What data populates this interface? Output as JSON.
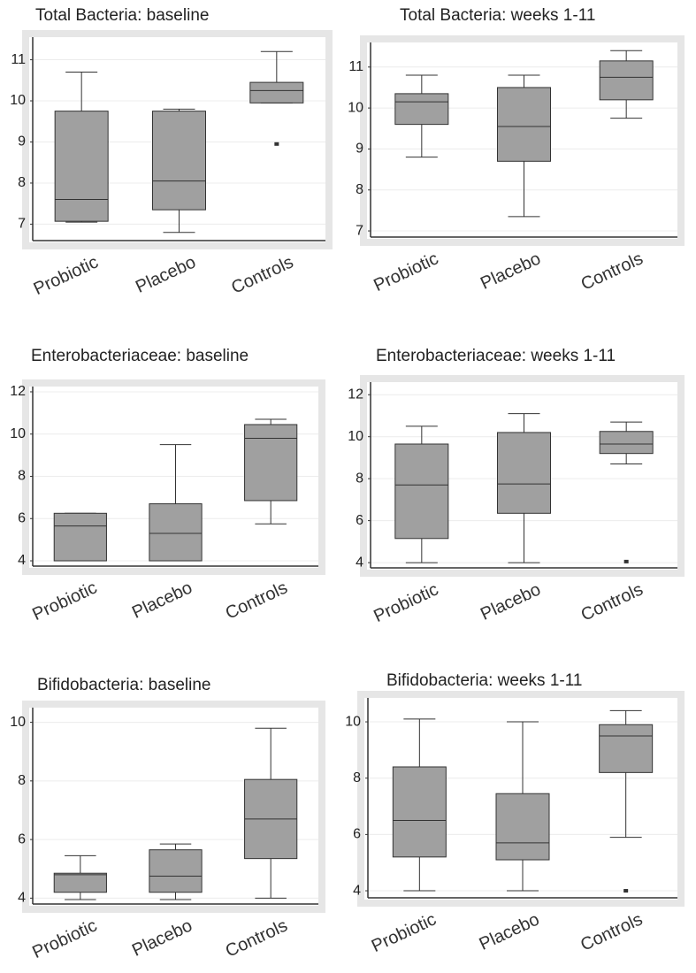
{
  "chart_data": [
    {
      "type": "box",
      "title": "Total Bacteria: baseline",
      "categories": [
        "Probiotic",
        "Placebo",
        "Controls"
      ],
      "color": "#a0a0a0",
      "grid": true,
      "ylim": [
        6.6,
        11.55
      ],
      "yticks": [
        7,
        8,
        9,
        10,
        11
      ],
      "boxes": [
        {
          "min": 7.05,
          "q1": 7.07,
          "median": 7.6,
          "q3": 9.75,
          "max": 10.7
        },
        {
          "min": 6.8,
          "q1": 7.35,
          "median": 8.05,
          "q3": 9.75,
          "max": 9.8
        },
        {
          "min": 9.95,
          "q1": 9.95,
          "median": 10.25,
          "q3": 10.45,
          "max": 11.2,
          "outliers": [
            8.95
          ]
        }
      ]
    },
    {
      "type": "box",
      "title": "Total Bacteria: weeks 1-11",
      "categories": [
        "Probiotic",
        "Placebo",
        "Controls"
      ],
      "color": "#a0a0a0",
      "grid": true,
      "ylim": [
        6.85,
        11.6
      ],
      "yticks": [
        7,
        8,
        9,
        10,
        11
      ],
      "boxes": [
        {
          "min": 8.8,
          "q1": 9.6,
          "median": 10.15,
          "q3": 10.35,
          "max": 10.8
        },
        {
          "min": 7.35,
          "q1": 8.7,
          "median": 9.55,
          "q3": 10.5,
          "max": 10.8
        },
        {
          "min": 9.75,
          "q1": 10.2,
          "median": 10.75,
          "q3": 11.15,
          "max": 11.4
        }
      ]
    },
    {
      "type": "box",
      "title": "Enterobacteriaceae: baseline",
      "categories": [
        "Probiotic",
        "Placebo",
        "Controls"
      ],
      "color": "#a0a0a0",
      "grid": true,
      "ylim": [
        3.75,
        12.25
      ],
      "yticks": [
        4,
        6,
        8,
        10,
        12
      ],
      "boxes": [
        {
          "min": 4,
          "q1": 4,
          "median": 5.65,
          "q3": 6.25,
          "max": 6.25
        },
        {
          "min": 4,
          "q1": 4,
          "median": 5.3,
          "q3": 6.7,
          "max": 9.5
        },
        {
          "min": 5.75,
          "q1": 6.85,
          "median": 9.8,
          "q3": 10.45,
          "max": 10.7
        }
      ]
    },
    {
      "type": "box",
      "title": "Enterobacteriaceae: weeks 1-11",
      "categories": [
        "Probiotic",
        "Placebo",
        "Controls"
      ],
      "color": "#a0a0a0",
      "grid": true,
      "ylim": [
        3.75,
        12.6
      ],
      "yticks": [
        4,
        6,
        8,
        10,
        12
      ],
      "boxes": [
        {
          "min": 4,
          "q1": 5.15,
          "median": 7.7,
          "q3": 9.65,
          "max": 10.5
        },
        {
          "min": 4,
          "q1": 6.35,
          "median": 7.75,
          "q3": 10.2,
          "max": 11.1
        },
        {
          "min": 8.7,
          "q1": 9.2,
          "median": 9.65,
          "q3": 10.25,
          "max": 10.7,
          "outliers": [
            4.05
          ]
        }
      ]
    },
    {
      "type": "box",
      "title": "Bifidobacteria: baseline",
      "categories": [
        "Probiotic",
        "Placebo",
        "Controls"
      ],
      "color": "#a0a0a0",
      "grid": true,
      "ylim": [
        3.8,
        10.5
      ],
      "yticks": [
        4,
        6,
        8,
        10
      ],
      "boxes": [
        {
          "min": 3.95,
          "q1": 4.2,
          "median": 4.8,
          "q3": 4.85,
          "max": 5.45
        },
        {
          "min": 3.95,
          "q1": 4.2,
          "median": 4.75,
          "q3": 5.65,
          "max": 5.85
        },
        {
          "min": 4,
          "q1": 5.35,
          "median": 6.7,
          "q3": 8.05,
          "max": 9.8
        }
      ]
    },
    {
      "type": "box",
      "title": "Bifidobacteria: weeks 1-11",
      "categories": [
        "Probiotic",
        "Placebo",
        "Controls"
      ],
      "color": "#a0a0a0",
      "grid": true,
      "ylim": [
        3.75,
        10.85
      ],
      "yticks": [
        4,
        6,
        8,
        10
      ],
      "boxes": [
        {
          "min": 4,
          "q1": 5.2,
          "median": 6.5,
          "q3": 8.4,
          "max": 10.1
        },
        {
          "min": 4,
          "q1": 5.1,
          "median": 5.7,
          "q3": 7.45,
          "max": 10
        },
        {
          "min": 5.9,
          "q1": 8.2,
          "median": 9.5,
          "q3": 9.9,
          "max": 10.4,
          "outliers": [
            4
          ]
        }
      ]
    }
  ]
}
